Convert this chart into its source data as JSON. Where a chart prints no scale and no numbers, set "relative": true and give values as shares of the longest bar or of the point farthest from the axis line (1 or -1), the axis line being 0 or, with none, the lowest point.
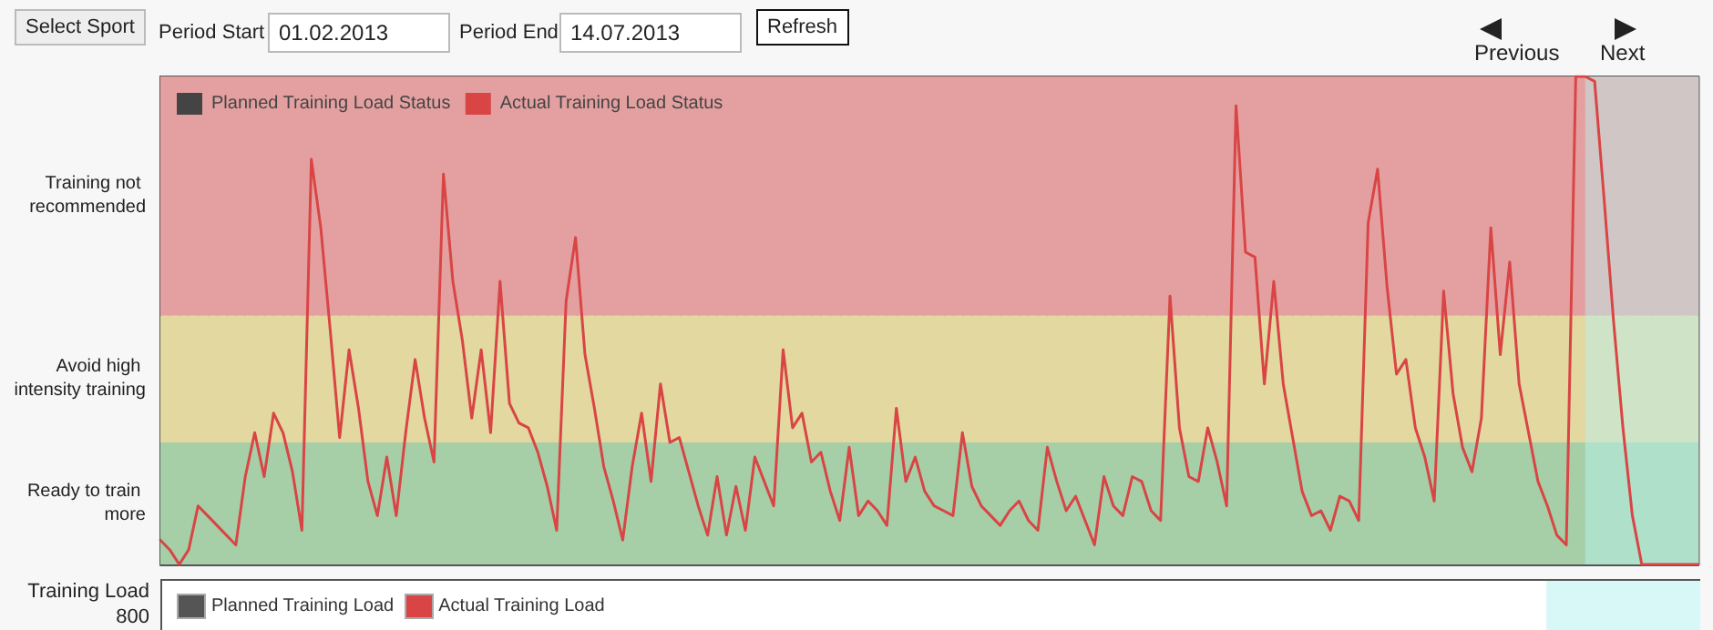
{
  "chart_data": {
    "type": "line",
    "relative": true,
    "categories": [
      null,
      null,
      null,
      null,
      null,
      null,
      null,
      null,
      null,
      null,
      null,
      null,
      null,
      null,
      null,
      null,
      null,
      null,
      null,
      null,
      null,
      null,
      null,
      null,
      null,
      null,
      null,
      null,
      null,
      null,
      null,
      null,
      null,
      null,
      null,
      null,
      null,
      null,
      null,
      null,
      null,
      null,
      null,
      null,
      null,
      null,
      null,
      null,
      null,
      null,
      null,
      null,
      null,
      null,
      null,
      null,
      null,
      null,
      null,
      null,
      null,
      null,
      null,
      null,
      null,
      null,
      null,
      null,
      null,
      null,
      null,
      null,
      null,
      null,
      null,
      null,
      null,
      null,
      null,
      null,
      null,
      null,
      null,
      null,
      null,
      null,
      null,
      null,
      null,
      null,
      null,
      null,
      null,
      null,
      null,
      null,
      null,
      null,
      null,
      null,
      null,
      null,
      null,
      null,
      null,
      null,
      null,
      null,
      null,
      null,
      null,
      null,
      null,
      null,
      null,
      null,
      null,
      null,
      null,
      null,
      null,
      null,
      null,
      null,
      null,
      null,
      null,
      null,
      null,
      null,
      null,
      null,
      null,
      null,
      null,
      null,
      null,
      null,
      null,
      null,
      null,
      null,
      null,
      null,
      null,
      null,
      null,
      null,
      null,
      null,
      null,
      null,
      null,
      null,
      null,
      null,
      null,
      null,
      null,
      null,
      null,
      null,
      null,
      null
    ],
    "series": [
      {
        "name": "Planned Training Load Status",
        "color": "#444444",
        "values": [
          null,
          null,
          null,
          null,
          null,
          null,
          null,
          null,
          null,
          null,
          null,
          null,
          null,
          null,
          null,
          null,
          null,
          null,
          null,
          null,
          null,
          null,
          null,
          null,
          null,
          null,
          null,
          null,
          null,
          null,
          null,
          null,
          null,
          null,
          null,
          null,
          null,
          null,
          null,
          null,
          null,
          null,
          null,
          null,
          null,
          null,
          null,
          null,
          null,
          null,
          null,
          null,
          null,
          null,
          null,
          null,
          null,
          null,
          null,
          null,
          null,
          null,
          null,
          null,
          null,
          null,
          null,
          null,
          null,
          null,
          null,
          null,
          null,
          null,
          null,
          null,
          null,
          null,
          null,
          null,
          null,
          null,
          null,
          null,
          null,
          null,
          null,
          null,
          null,
          null,
          null,
          null,
          null,
          null,
          null,
          null,
          null,
          null,
          null,
          null,
          null,
          null,
          null,
          null,
          null,
          null,
          null,
          null,
          null,
          null,
          null,
          null,
          null,
          null,
          null,
          null,
          null,
          null,
          null,
          null,
          null,
          null,
          null,
          null,
          null,
          null,
          null,
          null,
          null,
          null,
          null,
          null,
          null,
          null,
          null,
          null,
          null,
          null,
          null,
          null,
          null,
          null,
          null,
          null,
          null,
          null,
          null,
          null,
          null,
          null,
          null,
          null,
          null,
          null,
          null,
          null,
          null,
          null,
          null,
          null,
          null,
          null,
          null,
          null
        ]
      },
      {
        "name": "Actual Training Load Status",
        "color": "#d94545",
        "values": [
          0.05,
          0.03,
          0.0,
          0.03,
          0.12,
          0.1,
          0.08,
          0.06,
          0.04,
          0.18,
          0.27,
          0.18,
          0.31,
          0.27,
          0.19,
          0.07,
          0.83,
          0.69,
          0.48,
          0.26,
          0.44,
          0.32,
          0.17,
          0.1,
          0.22,
          0.1,
          0.27,
          0.42,
          0.3,
          0.21,
          0.8,
          0.58,
          0.46,
          0.3,
          0.44,
          0.27,
          0.58,
          0.33,
          0.29,
          0.28,
          0.23,
          0.16,
          0.07,
          0.54,
          0.67,
          0.43,
          0.32,
          0.2,
          0.13,
          0.05,
          0.2,
          0.31,
          0.17,
          0.37,
          0.25,
          0.26,
          0.19,
          0.12,
          0.06,
          0.18,
          0.06,
          0.16,
          0.07,
          0.22,
          0.17,
          0.12,
          0.44,
          0.28,
          0.31,
          0.21,
          0.23,
          0.15,
          0.09,
          0.24,
          0.1,
          0.13,
          0.11,
          0.08,
          0.32,
          0.17,
          0.22,
          0.15,
          0.12,
          0.11,
          0.1,
          0.27,
          0.16,
          0.12,
          0.1,
          0.08,
          0.11,
          0.13,
          0.09,
          0.07,
          0.24,
          0.17,
          0.11,
          0.14,
          0.09,
          0.04,
          0.18,
          0.12,
          0.1,
          0.18,
          0.17,
          0.11,
          0.09,
          0.55,
          0.28,
          0.18,
          0.17,
          0.28,
          0.21,
          0.12,
          0.94,
          0.64,
          0.63,
          0.37,
          0.58,
          0.37,
          0.26,
          0.15,
          0.1,
          0.11,
          0.07,
          0.14,
          0.13,
          0.09,
          0.7,
          0.81,
          0.57,
          0.39,
          0.42,
          0.28,
          0.22,
          0.13,
          0.56,
          0.35,
          0.24,
          0.19,
          0.3,
          0.69,
          0.43,
          0.62,
          0.37,
          0.27,
          0.17,
          0.12,
          0.06,
          0.04,
          1.0,
          1.0,
          0.99,
          0.75,
          0.5,
          0.28,
          0.1,
          0.0,
          0.0,
          0.0,
          0.0,
          0.0,
          0.0,
          0.0
        ]
      }
    ],
    "bands": [
      {
        "axis": "y",
        "from": 0,
        "to": 0.25,
        "label": "Ready to train more",
        "color": "#a6cfa8"
      },
      {
        "axis": "y",
        "from": 0.25,
        "to": 0.51,
        "label": "Avoid high intensity training",
        "color": "#e2d8a0"
      },
      {
        "axis": "y",
        "from": 0.51,
        "to": 1,
        "label": "Training not recommended",
        "color": "#e4a0a0"
      }
    ],
    "grid": true,
    "legend": "top left",
    "marker": "none",
    "line_style": "solid",
    "annotations": [
      "Select Sport",
      "Period Start",
      "01.02.2013",
      "Period End",
      "14.07.2013",
      "Refresh",
      "Previous",
      "Next",
      "Training Load",
      "800",
      "Planned Training Load",
      "Actual Training Load"
    ]
  }
}
